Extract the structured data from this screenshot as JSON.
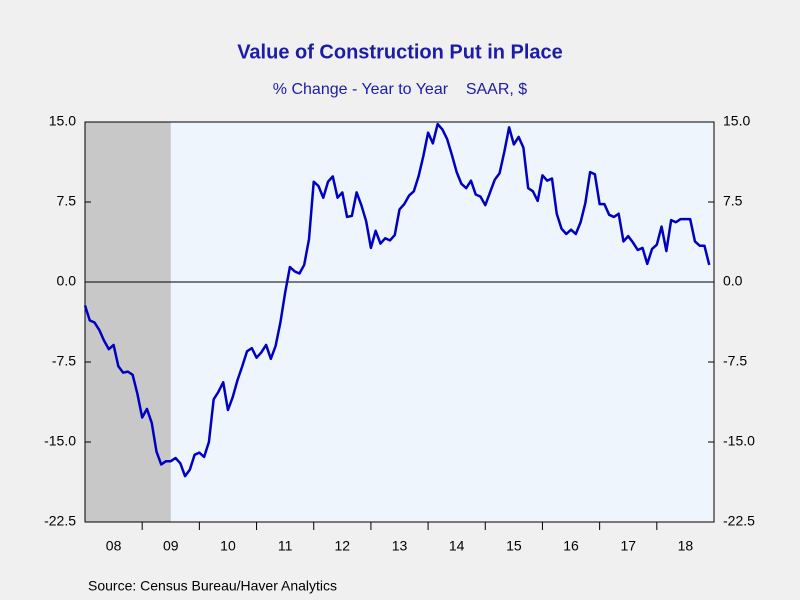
{
  "chart_data": {
    "type": "line",
    "title": "Value of Construction Put in Place",
    "subtitle": "% Change - Year to Year    SAAR, $",
    "source": "Source:  Census Bureau/Haver Analytics",
    "xlim": [
      2008,
      2019
    ],
    "xticks": [
      {
        "value": 2008.5,
        "label": "08"
      },
      {
        "value": 2009.5,
        "label": "09"
      },
      {
        "value": 2010.5,
        "label": "10"
      },
      {
        "value": 2011.5,
        "label": "11"
      },
      {
        "value": 2012.5,
        "label": "12"
      },
      {
        "value": 2013.5,
        "label": "13"
      },
      {
        "value": 2014.5,
        "label": "14"
      },
      {
        "value": 2015.5,
        "label": "15"
      },
      {
        "value": 2016.5,
        "label": "16"
      },
      {
        "value": 2017.5,
        "label": "17"
      },
      {
        "value": 2018.5,
        "label": "18"
      }
    ],
    "ylim": [
      -22.5,
      15
    ],
    "yticks": [
      {
        "value": 15,
        "label": "15.0"
      },
      {
        "value": 7.5,
        "label": "7.5"
      },
      {
        "value": 0,
        "label": "0.0"
      },
      {
        "value": -7.5,
        "label": "-7.5"
      },
      {
        "value": -15,
        "label": "-15.0"
      },
      {
        "value": -22.5,
        "label": "-22.5"
      }
    ],
    "y2lim": [
      -22.5,
      15
    ],
    "y2ticks": [
      {
        "value": 15,
        "label": "15.0"
      },
      {
        "value": 7.5,
        "label": "7.5"
      },
      {
        "value": 0,
        "label": "0.0"
      },
      {
        "value": -7.5,
        "label": "-7.5"
      },
      {
        "value": -15,
        "label": "-15.0"
      },
      {
        "value": -22.5,
        "label": "-22.5"
      }
    ],
    "shading": [
      [
        2008,
        2009.5
      ]
    ],
    "zero_line": true,
    "x": [
      2008,
      2008.083,
      2008.167,
      2008.25,
      2008.333,
      2008.417,
      2008.5,
      2008.583,
      2008.667,
      2008.75,
      2008.833,
      2008.917,
      2009,
      2009.083,
      2009.167,
      2009.25,
      2009.333,
      2009.417,
      2009.5,
      2009.583,
      2009.667,
      2009.75,
      2009.833,
      2009.917,
      2010,
      2010.083,
      2010.167,
      2010.25,
      2010.333,
      2010.417,
      2010.5,
      2010.583,
      2010.667,
      2010.75,
      2010.833,
      2010.917,
      2011,
      2011.083,
      2011.167,
      2011.25,
      2011.333,
      2011.417,
      2011.5,
      2011.583,
      2011.667,
      2011.75,
      2011.833,
      2011.917,
      2012,
      2012.083,
      2012.167,
      2012.25,
      2012.333,
      2012.417,
      2012.5,
      2012.583,
      2012.667,
      2012.75,
      2012.833,
      2012.917,
      2013,
      2013.083,
      2013.167,
      2013.25,
      2013.333,
      2013.417,
      2013.5,
      2013.583,
      2013.667,
      2013.75,
      2013.833,
      2013.917,
      2014,
      2014.083,
      2014.167,
      2014.25,
      2014.333,
      2014.417,
      2014.5,
      2014.583,
      2014.667,
      2014.75,
      2014.833,
      2014.917,
      2015,
      2015.083,
      2015.167,
      2015.25,
      2015.333,
      2015.417,
      2015.5,
      2015.583,
      2015.667,
      2015.75,
      2015.833,
      2015.917,
      2016,
      2016.083,
      2016.167,
      2016.25,
      2016.333,
      2016.417,
      2016.5,
      2016.583,
      2016.667,
      2016.75,
      2016.833,
      2016.917,
      2017,
      2017.083,
      2017.167,
      2017.25,
      2017.333,
      2017.417,
      2017.5,
      2017.583,
      2017.667,
      2017.75,
      2017.833,
      2017.917,
      2018,
      2018.083,
      2018.167,
      2018.25,
      2018.333,
      2018.417,
      2018.5,
      2018.583,
      2018.667,
      2018.75,
      2018.833,
      2018.917
    ],
    "series": [
      {
        "color": "#0000c0",
        "values": [
          -2.2,
          -3.6,
          -3.8,
          -4.5,
          -5.5,
          -6.3,
          -5.9,
          -7.9,
          -8.5,
          -8.4,
          -8.7,
          -10.5,
          -12.7,
          -11.9,
          -13.2,
          -15.9,
          -17.1,
          -16.8,
          -16.8,
          -16.5,
          -17.0,
          -18.2,
          -17.6,
          -16.2,
          -16.0,
          -16.4,
          -15.0,
          -11.0,
          -10.3,
          -9.4,
          -12.0,
          -10.8,
          -9.2,
          -7.9,
          -6.5,
          -6.2,
          -7.1,
          -6.6,
          -5.9,
          -7.2,
          -6.0,
          -3.8,
          -1.0,
          1.4,
          1.0,
          0.8,
          1.6,
          4.0,
          9.4,
          9.0,
          7.9,
          9.4,
          9.9,
          7.9,
          8.4,
          6.1,
          6.2,
          8.4,
          7.2,
          5.7,
          3.2,
          4.8,
          3.6,
          4.1,
          3.9,
          4.4,
          6.8,
          7.3,
          8.1,
          8.5,
          9.9,
          11.8,
          14.0,
          13.0,
          14.8,
          14.3,
          13.4,
          11.9,
          10.3,
          9.2,
          8.8,
          9.5,
          8.2,
          8.0,
          7.2,
          8.4,
          9.6,
          10.2,
          12.2,
          14.5,
          12.9,
          13.6,
          12.6,
          8.8,
          8.5,
          7.6,
          10.0,
          9.5,
          9.7,
          6.4,
          5.0,
          4.5,
          4.9,
          4.5,
          5.6,
          7.4,
          10.3,
          10.1,
          7.3,
          7.3,
          6.3,
          6.1,
          6.4,
          3.8,
          4.3,
          3.7,
          3.0,
          3.2,
          1.7,
          3.1,
          3.5,
          5.2,
          2.9,
          5.8,
          5.6,
          5.9,
          5.9,
          5.9,
          3.8,
          3.4,
          3.4,
          1.6
        ]
      }
    ]
  }
}
